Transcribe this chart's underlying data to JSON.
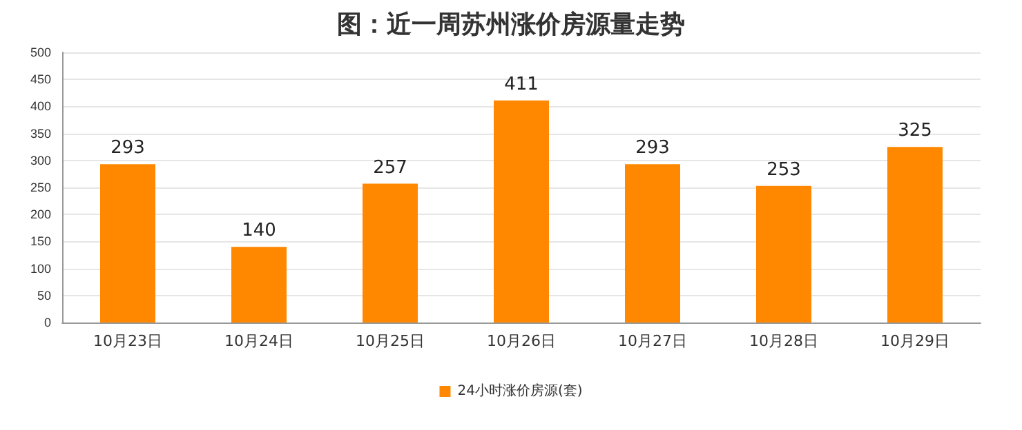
{
  "chart_data": {
    "type": "bar",
    "title": "图：近一周苏州涨价房源量走势",
    "categories": [
      "10月23日",
      "10月24日",
      "10月25日",
      "10月26日",
      "10月27日",
      "10月28日",
      "10月29日"
    ],
    "series": [
      {
        "name": "24小时涨价房源(套)",
        "color": "#ff8800",
        "values": [
          293,
          140,
          257,
          411,
          293,
          253,
          325
        ]
      }
    ],
    "ylim": [
      0,
      500
    ],
    "yticks": [
      0,
      50,
      100,
      150,
      200,
      250,
      300,
      350,
      400,
      450,
      500
    ],
    "grid": "y",
    "legend": "bottom",
    "data_labels": true
  }
}
